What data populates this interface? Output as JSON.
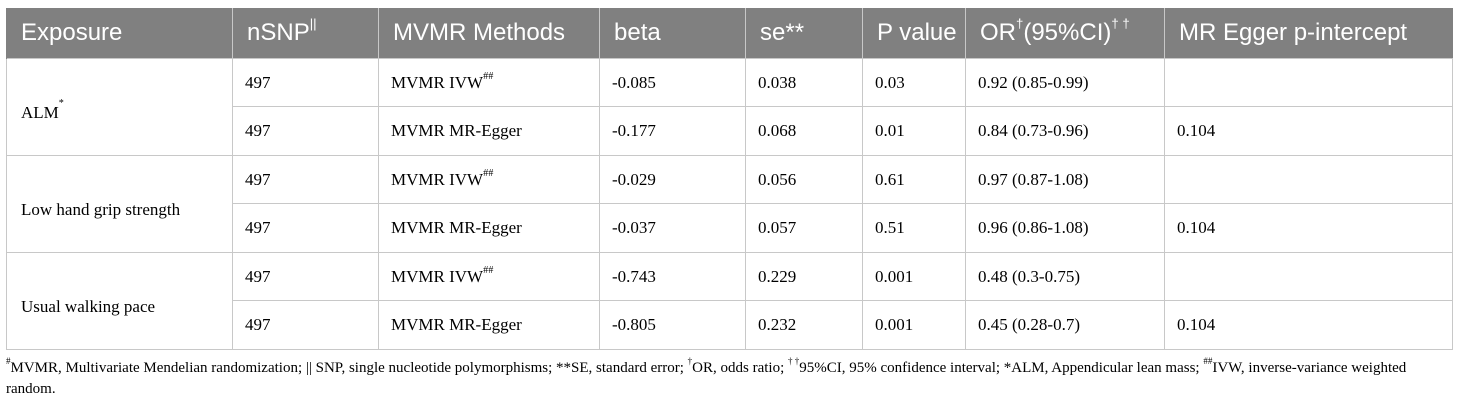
{
  "table": {
    "headers": [
      {
        "text": "Exposure",
        "sup": ""
      },
      {
        "text": "nSNP",
        "sup": "||"
      },
      {
        "text": "MVMR Methods",
        "sup": ""
      },
      {
        "text": "beta",
        "sup": ""
      },
      {
        "text": "se**",
        "sup": ""
      },
      {
        "text": "P value",
        "sup": ""
      },
      {
        "text": "OR",
        "sup": "†",
        "text2": "(95%CI)",
        "sup2": "† †"
      },
      {
        "text": "MR Egger p-intercept",
        "sup": ""
      }
    ],
    "groups": [
      {
        "exposure": "ALM",
        "exposure_sup": "*",
        "rows": [
          {
            "nsnp": "497",
            "method": "MVMR IVW",
            "method_sup": "##",
            "beta": "-0.085",
            "se": "0.038",
            "p": "0.03",
            "or": "0.92 (0.85-0.99)",
            "egger": ""
          },
          {
            "nsnp": "497",
            "method": "MVMR MR-Egger",
            "method_sup": "",
            "beta": "-0.177",
            "se": "0.068",
            "p": "0.01",
            "or": "0.84 (0.73-0.96)",
            "egger": "0.104"
          }
        ]
      },
      {
        "exposure": "Low hand grip strength",
        "exposure_sup": "",
        "rows": [
          {
            "nsnp": "497",
            "method": "MVMR IVW",
            "method_sup": "##",
            "beta": "-0.029",
            "se": "0.056",
            "p": "0.61",
            "or": "0.97 (0.87-1.08)",
            "egger": ""
          },
          {
            "nsnp": "497",
            "method": "MVMR MR-Egger",
            "method_sup": "",
            "beta": "-0.037",
            "se": "0.057",
            "p": "0.51",
            "or": "0.96 (0.86-1.08)",
            "egger": "0.104"
          }
        ]
      },
      {
        "exposure": "Usual walking pace",
        "exposure_sup": "",
        "rows": [
          {
            "nsnp": "497",
            "method": "MVMR IVW",
            "method_sup": "##",
            "beta": "-0.743",
            "se": "0.229",
            "p": "0.001",
            "or": "0.48 (0.3-0.75)",
            "egger": ""
          },
          {
            "nsnp": "497",
            "method": "MVMR MR-Egger",
            "method_sup": "",
            "beta": "-0.805",
            "se": "0.232",
            "p": "0.001",
            "or": "0.45 (0.28-0.7)",
            "egger": "0.104"
          }
        ]
      }
    ]
  },
  "footnote": {
    "parts": [
      {
        "sup": "#",
        "text": "MVMR, Multivariate Mendelian randomization; || SNP, single nucleotide polymorphisms; **SE, standard error; "
      },
      {
        "sup": "†",
        "text": "OR, odds ratio; "
      },
      {
        "sup": "† †",
        "text": "95%CI, 95% confidence interval; *ALM, Appendicular lean mass; "
      },
      {
        "sup": "##",
        "text": "IVW, inverse-variance weighted random."
      }
    ]
  },
  "colors": {
    "header_bg": "#808080",
    "header_text": "#ffffff",
    "grid": "#c8c8c8"
  }
}
